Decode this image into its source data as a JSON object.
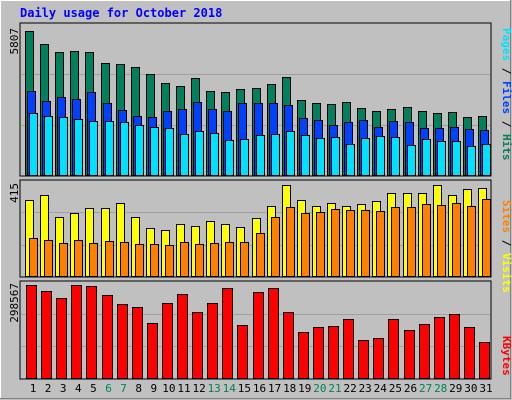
{
  "title": "Daily usage for October 2018",
  "colors": {
    "background": "#c0c0c0",
    "border_light": "#ffffff",
    "border_dark": "#808080",
    "title": "#0000ff",
    "axis_text": "#000000",
    "weekend_text": "#00805c",
    "hits": "#00805c",
    "files": "#0040ff",
    "pages": "#00e0ff",
    "visits": "#ffff00",
    "sites": "#ff8000",
    "kbytes": "#ff0000"
  },
  "chart_data": {
    "type": "bar",
    "title": "Daily usage for October 2018",
    "categories": [
      "1",
      "2",
      "3",
      "4",
      "5",
      "6",
      "7",
      "8",
      "9",
      "10",
      "11",
      "12",
      "13",
      "14",
      "15",
      "16",
      "17",
      "18",
      "19",
      "20",
      "21",
      "22",
      "23",
      "24",
      "25",
      "26",
      "27",
      "28",
      "29",
      "30",
      "31"
    ],
    "weekend_days": [
      "6",
      "7",
      "13",
      "14",
      "20",
      "21",
      "27",
      "28"
    ],
    "grid": true,
    "legend": "right",
    "panels": [
      {
        "id": "hits_files_pages",
        "ymax_label": "5807",
        "ylim": [
          0,
          5807
        ],
        "legend": [
          "Pages",
          "Files",
          "Hits"
        ],
        "series": [
          {
            "name": "Hits",
            "values": [
              5807,
              5300,
              4975,
              5000,
              4975,
              4520,
              4485,
              4360,
              4085,
              3710,
              3590,
              3920,
              3405,
              3350,
              3495,
              3530,
              3695,
              3945,
              3040,
              2915,
              2885,
              2945,
              2710,
              2590,
              2690,
              2750,
              2590,
              2520,
              2560,
              2360,
              2385
            ]
          },
          {
            "name": "Files",
            "values": [
              3410,
              2990,
              3160,
              3070,
              3370,
              2930,
              2650,
              2400,
              2375,
              2600,
              2680,
              2960,
              2675,
              2600,
              2910,
              2940,
              2930,
              2830,
              2340,
              2230,
              2035,
              2180,
              2255,
              1970,
              2200,
              2145,
              1920,
              1920,
              1980,
              1890,
              1840
            ]
          },
          {
            "name": "Pages",
            "values": [
              2530,
              2400,
              2380,
              2300,
              2190,
              2200,
              2175,
              2030,
              1970,
              1920,
              1700,
              1810,
              1730,
              1460,
              1490,
              1650,
              1680,
              1790,
              1630,
              1510,
              1580,
              1290,
              1540,
              1590,
              1570,
              1230,
              1480,
              1400,
              1410,
              1200,
              1300
            ]
          }
        ]
      },
      {
        "id": "visits_sites",
        "ymax_label": "415",
        "ylim": [
          0,
          415
        ],
        "legend": [
          "Sites",
          "Visits"
        ],
        "series": [
          {
            "name": "Visits",
            "values": [
              342,
              366,
              267,
              285,
              308,
              308,
              330,
              267,
              220,
              208,
              235,
              228,
              252,
              237,
              221,
              264,
              315,
              412,
              342,
              318,
              329,
              317,
              324,
              339,
              375,
              375,
              375,
              411,
              367,
              392,
              395
            ]
          },
          {
            "name": "Sites",
            "values": [
              174,
              164,
              152,
              163,
              152,
              161,
              157,
              147,
              147,
              144,
              155,
              147,
              150,
              155,
              158,
              198,
              266,
              311,
              285,
              290,
              304,
              300,
              301,
              295,
              311,
              314,
              327,
              323,
              330,
              318,
              348
            ]
          }
        ]
      },
      {
        "id": "kbytes",
        "ymax_label": "298567",
        "ylim": [
          0,
          298567
        ],
        "legend": [
          "KBytes"
        ],
        "series": [
          {
            "name": "KBytes",
            "values": [
              298567,
              279000,
              258000,
              298500,
              296000,
              268000,
              238000,
              230000,
              178000,
              240000,
              270000,
              214000,
              240000,
              290000,
              170000,
              276000,
              290000,
              213000,
              150000,
              164000,
              168000,
              189000,
              124000,
              129000,
              190000,
              155000,
              175000,
              196000,
              205000,
              164000,
              118000
            ]
          }
        ]
      }
    ]
  }
}
